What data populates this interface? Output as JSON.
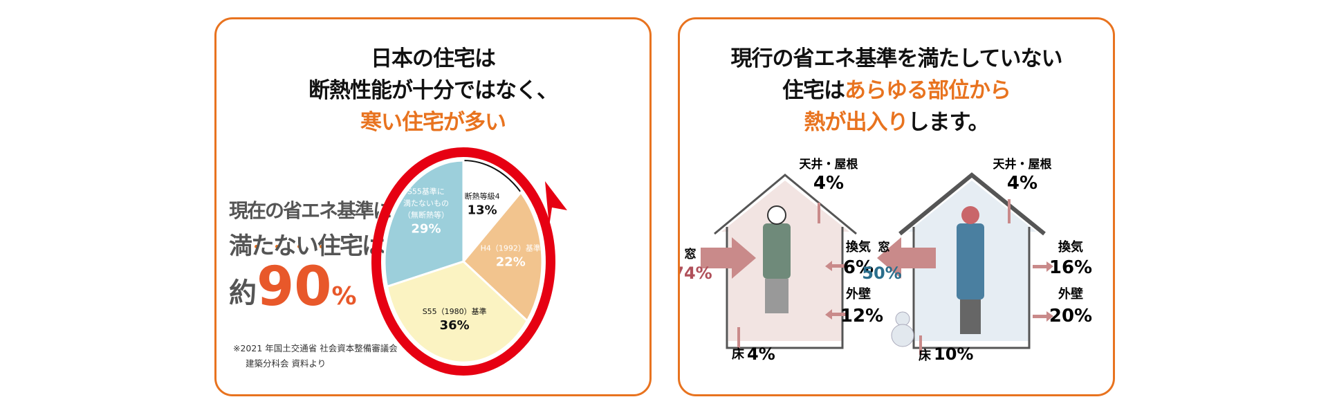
{
  "left_card": {
    "title_line1": "日本の住宅は",
    "title_line2": "断熱性能が十分ではなく、",
    "title_line3": "寒い住宅が多い",
    "headline_line1": "現在の省エネ基準に",
    "headline_line2": "満たない住宅は",
    "headline_prefix": "約",
    "headline_value": "90",
    "headline_unit": "%",
    "note_line1": "※2021 年国土交通省 社会資本整備審議会",
    "note_line2": "建築分科会 資料より",
    "chart_data": {
      "type": "pie",
      "start": "top",
      "direction": "clockwise",
      "slices": [
        {
          "label": "断熱等級4",
          "value": 13,
          "display": "13%",
          "color": "#ffffff",
          "text_color": "#111111"
        },
        {
          "label": "H4（1992）基準",
          "value": 22,
          "display": "22%",
          "color": "#f2c48e",
          "text_color": "#ffffff"
        },
        {
          "label": "S55（1980）基準",
          "value": 36,
          "display": "36%",
          "color": "#fbf3c2",
          "text_color": "#111111"
        },
        {
          "label": "S55基準に満たないもの（無断熱等）",
          "value": 29,
          "display": "29%",
          "color": "#9ccfdb",
          "text_color": "#ffffff"
        }
      ],
      "ring_color": "#e60012"
    }
  },
  "right_card": {
    "title_line1": "現行の省エネ基準を満たしていない",
    "title_line2_a": "住宅は",
    "title_line2_b": "あらゆる部位から",
    "title_line3_a": "熱が出入り",
    "title_line3_b": "します。",
    "summer": {
      "roof_label": "天井・屋根",
      "roof_value": "4%",
      "window_label": "窓",
      "window_value": "74%",
      "vent_label": "換気",
      "vent_value": "6%",
      "wall_label": "外壁",
      "wall_value": "12%",
      "floor_label": "床",
      "floor_value": "4%",
      "window_color": "#b0505a"
    },
    "winter": {
      "roof_label": "天井・屋根",
      "roof_value": "4%",
      "window_label": "窓",
      "window_value": "50%",
      "vent_label": "換気",
      "vent_value": "16%",
      "wall_label": "外壁",
      "wall_value": "20%",
      "floor_label": "床",
      "floor_value": "10%",
      "window_color": "#2a6e8c"
    }
  }
}
